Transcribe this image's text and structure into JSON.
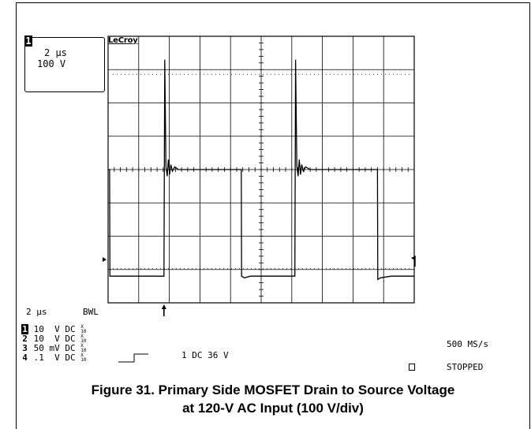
{
  "channel_box": {
    "channel": "1",
    "timebase": "2 µs",
    "volts": "100 V"
  },
  "brand": "LeCroy",
  "bottom_left": {
    "timebase": "2 µs",
    "bwl": "BWL",
    "channels": [
      {
        "num": "1",
        "scale": "10",
        "unit": "V",
        "coupling": "DC",
        "probe_top": "X",
        "probe_bot": "10"
      },
      {
        "num": "2",
        "scale": "10",
        "unit": "V",
        "coupling": "DC",
        "probe_top": "X",
        "probe_bot": "10"
      },
      {
        "num": "3",
        "scale": "50",
        "unit": "mV",
        "coupling": "DC",
        "probe_top": "X",
        "probe_bot": "10"
      },
      {
        "num": "4",
        "scale": ".1",
        "unit": "V",
        "coupling": "DC",
        "probe_top": "X",
        "probe_bot": "10"
      }
    ]
  },
  "trigger": {
    "text": "1 DC 36 V"
  },
  "sample_rate": "500 MS/s",
  "status": "STOPPED",
  "caption": {
    "line1": "Figure 31. Primary Side MOSFET Drain to Source Voltage",
    "line2": "at 120-V AC Input (100 V/div)"
  },
  "chart_data": {
    "type": "line",
    "x_divisions": 10,
    "y_divisions": 8,
    "x_unit": "µs",
    "x_per_div": 2,
    "y_per_div": 100,
    "y_unit": "V",
    "xlim": [
      0,
      20
    ],
    "ylim": [
      -400,
      400
    ],
    "grid": true,
    "series": [
      {
        "x": [
          0,
          0.1,
          0.12,
          3.65,
          3.7,
          3.78,
          3.86,
          3.94,
          4.02,
          4.1,
          4.2,
          4.35,
          4.6,
          5.0,
          6.0,
          8.5,
          8.7,
          8.72,
          8.9,
          9.3,
          12.2,
          12.25,
          12.33,
          12.41,
          12.49,
          12.57,
          12.65,
          12.75,
          12.9,
          13.2,
          13.8,
          15.0,
          17.5,
          17.6,
          17.62,
          17.8,
          18.5,
          20
        ],
        "y": [
          0,
          0,
          -320,
          -320,
          330,
          10,
          -20,
          30,
          -15,
          15,
          -5,
          8,
          0,
          0,
          0,
          0,
          0,
          -320,
          -325,
          -320,
          -320,
          330,
          10,
          -20,
          30,
          -15,
          15,
          -5,
          8,
          0,
          0,
          0,
          0,
          0,
          -330,
          -325,
          -320,
          -320
        ]
      }
    ],
    "annotations": [
      "trigger marker at x = 3.65 µs",
      "ground marker at -270 V (left)",
      "trigger level marker (right)"
    ]
  }
}
